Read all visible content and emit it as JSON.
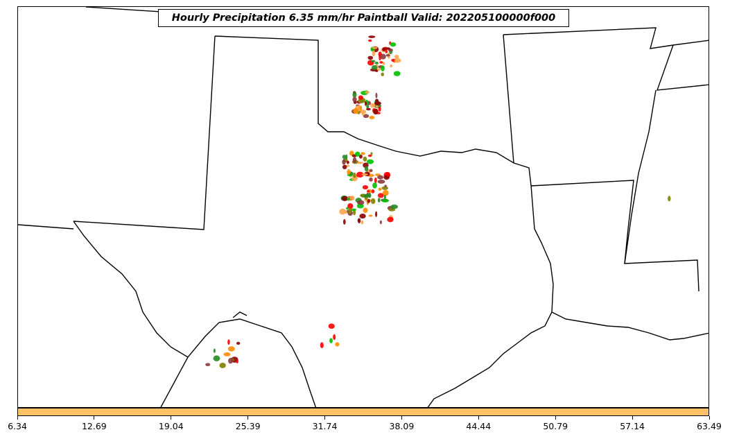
{
  "title": "Hourly Precipitation 6.35 mm/hr Paintball Valid: 202205100000f000",
  "colorbar": {
    "color": "#ffc266",
    "ticks": [
      "6.34",
      "12.69",
      "19.04",
      "25.39",
      "31.74",
      "38.09",
      "44.44",
      "50.79",
      "57.14",
      "63.49"
    ]
  },
  "map": {
    "background": "#ffffff",
    "boundary_color": "#000000",
    "blob_colors": [
      "#8b0000",
      "#ff0000",
      "#ff8c00",
      "#ffa54f",
      "#808000",
      "#00c000",
      "#228b22",
      "#8b3a3a"
    ]
  }
}
